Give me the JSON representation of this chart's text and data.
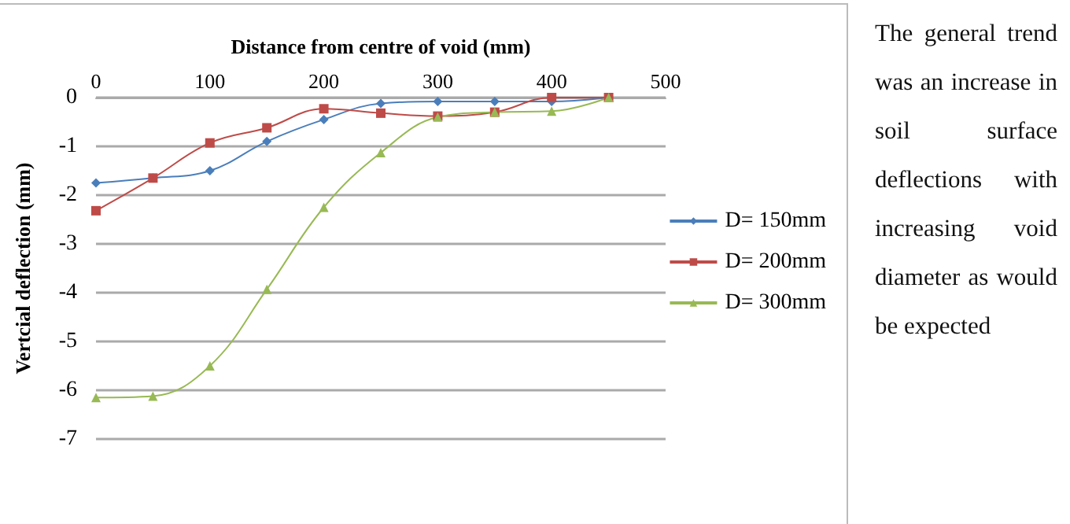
{
  "chart_data": {
    "type": "line",
    "xlabel": "Distance from centre of void (mm)",
    "ylabel": "Vertcial deflection (mm)",
    "x": [
      0,
      50,
      100,
      150,
      200,
      250,
      300,
      350,
      400,
      450
    ],
    "series": [
      {
        "name": "D= 150mm",
        "color": "#4a7ebb",
        "marker": "diamond",
        "values": [
          -1.75,
          -1.65,
          -1.5,
          -0.9,
          -0.45,
          -0.12,
          -0.08,
          -0.08,
          -0.08,
          0
        ]
      },
      {
        "name": "D= 200mm",
        "color": "#be4b48",
        "marker": "square",
        "values": [
          -2.32,
          -1.65,
          -0.93,
          -0.62,
          -0.23,
          -0.32,
          -0.38,
          -0.3,
          0,
          0
        ]
      },
      {
        "name": "D= 300mm",
        "color": "#98b954",
        "marker": "triangle",
        "values": [
          -6.15,
          -6.12,
          -5.5,
          -3.93,
          -2.25,
          -1.13,
          -0.4,
          -0.3,
          -0.28,
          0
        ]
      }
    ],
    "xlim": [
      0,
      500
    ],
    "xticks": [
      0,
      100,
      200,
      300,
      400,
      500
    ],
    "ylim": [
      -7,
      0
    ],
    "yticks": [
      -7,
      -6,
      -5,
      -4,
      -3,
      -2,
      -1,
      0
    ],
    "grid": "y",
    "legend": "right",
    "annotations": [
      "The general trend was an increase in soil surface deflections with increasing void diameter as would be expected"
    ]
  }
}
